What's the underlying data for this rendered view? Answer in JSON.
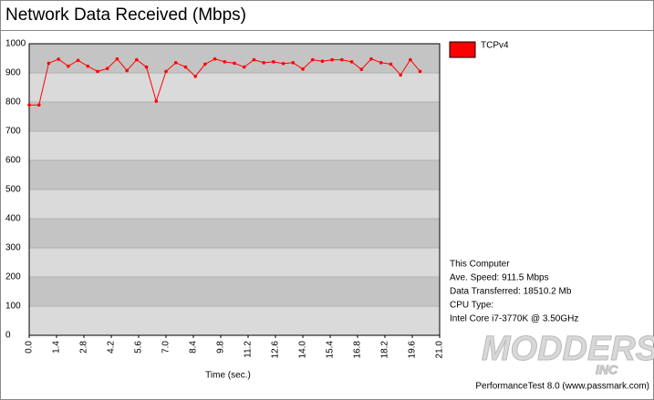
{
  "chart_data": {
    "type": "line",
    "title": "Network Data Received (Mbps)",
    "x_label": "Time (sec.)",
    "x": [
      0,
      0.5,
      1,
      1.5,
      2,
      2.5,
      3,
      3.5,
      4,
      4.5,
      5,
      5.5,
      6,
      6.5,
      7,
      7.5,
      8,
      8.5,
      9,
      9.5,
      10,
      10.5,
      11,
      11.5,
      12,
      12.5,
      13,
      13.5,
      14,
      14.5,
      15,
      15.5,
      16,
      16.5,
      17,
      17.5,
      18,
      18.5,
      19,
      19.5,
      20
    ],
    "series": [
      {
        "name": "TCPv4",
        "color": "#ff0000",
        "values": [
          790,
          790,
          933,
          947,
          923,
          943,
          923,
          905,
          915,
          948,
          908,
          945,
          920,
          803,
          905,
          935,
          920,
          888,
          930,
          948,
          938,
          933,
          920,
          945,
          935,
          938,
          932,
          935,
          913,
          945,
          940,
          945,
          945,
          938,
          912,
          948,
          935,
          930,
          893,
          945,
          905
        ]
      }
    ],
    "xlim": [
      0,
      21
    ],
    "xticks": [
      {
        "value": 0,
        "label": "0.0"
      },
      {
        "value": 1.4,
        "label": "1.4"
      },
      {
        "value": 2.8,
        "label": "2.8"
      },
      {
        "value": 4.2,
        "label": "4.2"
      },
      {
        "value": 5.6,
        "label": "5.6"
      },
      {
        "value": 7,
        "label": "7.0"
      },
      {
        "value": 8.4,
        "label": "8.4"
      },
      {
        "value": 9.8,
        "label": "9.8"
      },
      {
        "value": 11.2,
        "label": "11.2"
      },
      {
        "value": 12.6,
        "label": "12.6"
      },
      {
        "value": 14,
        "label": "14.0"
      },
      {
        "value": 15.4,
        "label": "15.4"
      },
      {
        "value": 16.8,
        "label": "16.8"
      },
      {
        "value": 18.2,
        "label": "18.2"
      },
      {
        "value": 19.6,
        "label": "19.6"
      },
      {
        "value": 21,
        "label": "21.0"
      }
    ],
    "ylim": [
      0,
      1000
    ],
    "yticks": [
      0,
      100,
      200,
      300,
      400,
      500,
      600,
      700,
      800,
      900,
      1000
    ],
    "info": [
      "This Computer",
      "Ave. Speed: 911.5 Mbps",
      "Data Transferred: 18510.2 Mb",
      "CPU Type:",
      "Intel Core i7-3770K @ 3.50GHz"
    ],
    "footer": "PerformanceTest 8.0 (www.passmark.com)",
    "watermark": [
      "MODDERS",
      "INC"
    ]
  }
}
